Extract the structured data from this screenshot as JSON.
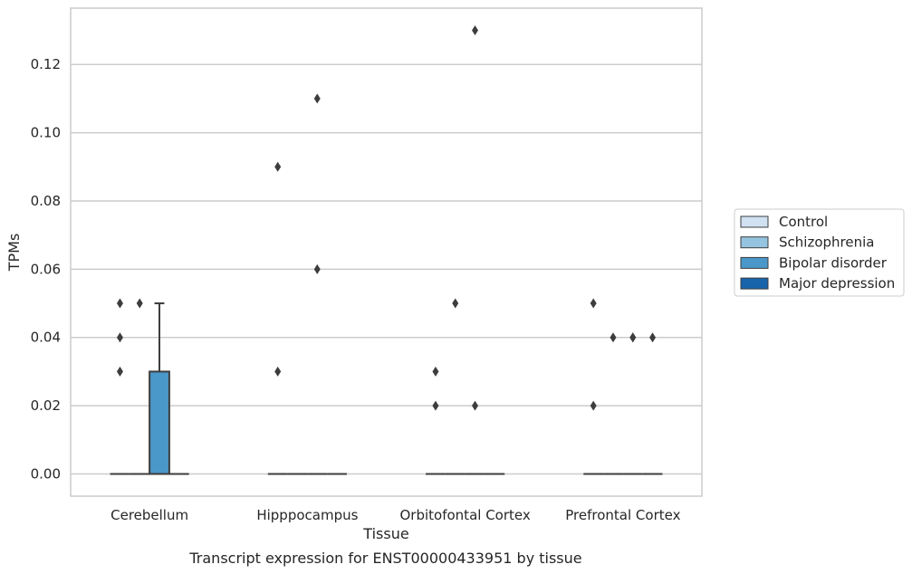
{
  "chart_data": {
    "type": "box",
    "title": "Transcript expression for ENST00000433951 by tissue",
    "xlabel": "Tissue",
    "ylabel": "TPMs",
    "ylim": [
      -0.0065,
      0.1365
    ],
    "yticks": [
      0.0,
      0.02,
      0.04,
      0.06,
      0.08,
      0.1,
      0.12
    ],
    "ytick_labels": [
      "0.00",
      "0.02",
      "0.04",
      "0.06",
      "0.08",
      "0.10",
      "0.12"
    ],
    "grid": "horizontal",
    "legend_position": "right",
    "categories": [
      "Cerebellum",
      "Hipppocampus",
      "Orbitofontal Cortex",
      "Prefrontal Cortex"
    ],
    "series": [
      {
        "name": "Control",
        "color": "#d0e1f2"
      },
      {
        "name": "Schizophrenia",
        "color": "#94c4df"
      },
      {
        "name": "Bipolar disorder",
        "color": "#4a98c9"
      },
      {
        "name": "Major depression",
        "color": "#1764ab"
      }
    ],
    "boxes": [
      {
        "category": 0,
        "series": 0,
        "q1": 0,
        "median": 0,
        "q3": 0,
        "whisker_low": 0,
        "whisker_high": 0,
        "outliers": [
          0.03,
          0.04,
          0.05
        ]
      },
      {
        "category": 0,
        "series": 1,
        "q1": 0,
        "median": 0,
        "q3": 0,
        "whisker_low": 0,
        "whisker_high": 0,
        "outliers": [
          0.05
        ]
      },
      {
        "category": 0,
        "series": 2,
        "q1": 0,
        "median": 0,
        "q3": 0.03,
        "whisker_low": 0,
        "whisker_high": 0.05,
        "outliers": []
      },
      {
        "category": 0,
        "series": 3,
        "q1": 0,
        "median": 0,
        "q3": 0,
        "whisker_low": 0,
        "whisker_high": 0,
        "outliers": []
      },
      {
        "category": 1,
        "series": 0,
        "q1": 0,
        "median": 0,
        "q3": 0,
        "whisker_low": 0,
        "whisker_high": 0,
        "outliers": [
          0.03,
          0.09
        ]
      },
      {
        "category": 1,
        "series": 1,
        "q1": 0,
        "median": 0,
        "q3": 0,
        "whisker_low": 0,
        "whisker_high": 0,
        "outliers": []
      },
      {
        "category": 1,
        "series": 2,
        "q1": 0,
        "median": 0,
        "q3": 0,
        "whisker_low": 0,
        "whisker_high": 0,
        "outliers": [
          0.06,
          0.11
        ]
      },
      {
        "category": 1,
        "series": 3,
        "q1": 0,
        "median": 0,
        "q3": 0,
        "whisker_low": 0,
        "whisker_high": 0,
        "outliers": []
      },
      {
        "category": 2,
        "series": 0,
        "q1": 0,
        "median": 0,
        "q3": 0,
        "whisker_low": 0,
        "whisker_high": 0,
        "outliers": [
          0.02,
          0.03
        ]
      },
      {
        "category": 2,
        "series": 1,
        "q1": 0,
        "median": 0,
        "q3": 0,
        "whisker_low": 0,
        "whisker_high": 0,
        "outliers": [
          0.05
        ]
      },
      {
        "category": 2,
        "series": 2,
        "q1": 0,
        "median": 0,
        "q3": 0,
        "whisker_low": 0,
        "whisker_high": 0,
        "outliers": [
          0.02,
          0.13
        ]
      },
      {
        "category": 2,
        "series": 3,
        "q1": 0,
        "median": 0,
        "q3": 0,
        "whisker_low": 0,
        "whisker_high": 0,
        "outliers": []
      },
      {
        "category": 3,
        "series": 0,
        "q1": 0,
        "median": 0,
        "q3": 0,
        "whisker_low": 0,
        "whisker_high": 0,
        "outliers": [
          0.02,
          0.05
        ]
      },
      {
        "category": 3,
        "series": 1,
        "q1": 0,
        "median": 0,
        "q3": 0,
        "whisker_low": 0,
        "whisker_high": 0,
        "outliers": [
          0.04
        ]
      },
      {
        "category": 3,
        "series": 2,
        "q1": 0,
        "median": 0,
        "q3": 0,
        "whisker_low": 0,
        "whisker_high": 0,
        "outliers": [
          0.04,
          0.04
        ]
      },
      {
        "category": 3,
        "series": 3,
        "q1": 0,
        "median": 0,
        "q3": 0,
        "whisker_low": 0,
        "whisker_high": 0,
        "outliers": [
          0.04
        ]
      }
    ]
  }
}
